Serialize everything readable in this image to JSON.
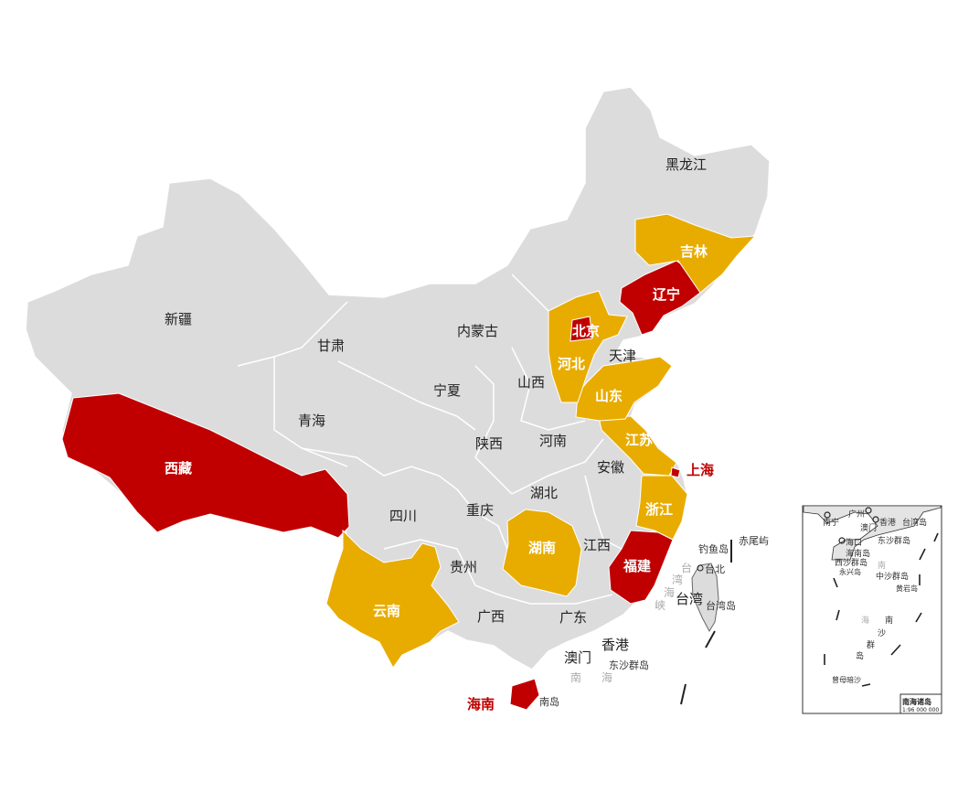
{
  "colors": {
    "base": "#dcdcdc",
    "high": "#c00000",
    "medium": "#e8ac00",
    "border": "#ffffff"
  },
  "provinces": {
    "xinjiang": "新疆",
    "xizang": "西藏",
    "qinghai": "青海",
    "gansu": "甘肃",
    "neimenggu": "内蒙古",
    "heilongjiang": "黑龙江",
    "jilin": "吉林",
    "liaoning": "辽宁",
    "beijing": "北京",
    "tianjin": "天津",
    "hebei": "河北",
    "shanxi": "山西",
    "ningxia": "宁夏",
    "shaanxi": "陕西",
    "henan": "河南",
    "shandong": "山东",
    "jiangsu": "江苏",
    "shanghai": "上海",
    "anhui": "安徽",
    "zhejiang": "浙江",
    "hubei": "湖北",
    "sichuan": "四川",
    "chongqing": "重庆",
    "hunan": "湖南",
    "jiangxi": "江西",
    "fujian": "福建",
    "guizhou": "贵州",
    "yunnan": "云南",
    "guangxi": "广西",
    "guangdong": "广东",
    "hainan": "海南",
    "taiwan": "台湾",
    "xianggang": "香港",
    "aomen": "澳门"
  },
  "highlight": {
    "high": [
      "xizang",
      "liaoning",
      "beijing",
      "shanghai",
      "fujian",
      "hainan"
    ],
    "medium": [
      "jilin",
      "hebei",
      "shandong",
      "jiangsu",
      "zhejiang",
      "hunan",
      "yunnan"
    ]
  },
  "annotations": {
    "diaoyudao": "钓鱼岛",
    "chiweiyu": "赤尾屿",
    "taibei": "台北",
    "taiwandao": "台湾岛",
    "taiwan_strait": [
      "台",
      "湾",
      "海",
      "峡"
    ],
    "dongsha": "东沙群岛",
    "nanhai": [
      "南",
      "海"
    ],
    "hainandao_partial": "南岛"
  },
  "inset": {
    "title": "南海诸岛",
    "scale": "1:96 000 000",
    "labels": [
      "南宁",
      "广州",
      "香港",
      "澳门",
      "台湾岛",
      "海口",
      "东沙群岛",
      "海南岛",
      "西沙群岛",
      "永兴岛",
      "中沙群岛",
      "黄岩岛",
      "曾母暗沙"
    ],
    "sea": [
      "南",
      "海"
    ],
    "nansha": [
      "南",
      "沙",
      "群",
      "岛"
    ]
  }
}
